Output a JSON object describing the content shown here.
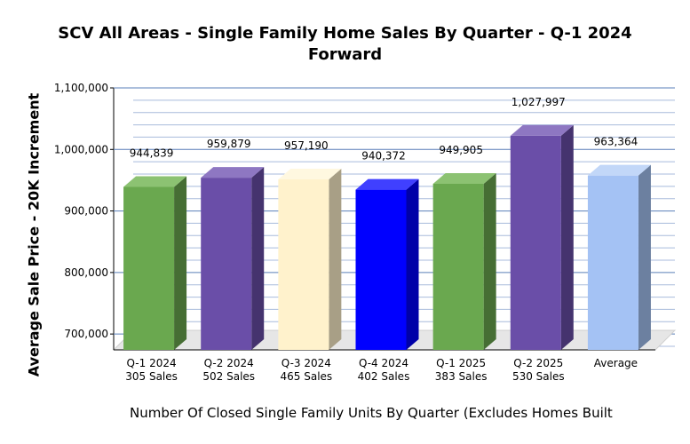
{
  "chart_data": {
    "type": "bar",
    "title": "SCV All Areas - Single Family Home Sales By Quarter - Q-1 2024 Forward",
    "title_lines": [
      "SCV All Areas - Single Family Home Sales By Quarter - Q-1 2024",
      "Forward"
    ],
    "ylabel": "Average Sale Price - 20K Increment",
    "xlabel": "Number Of Closed Single Family Units By Quarter (Excludes Homes Built",
    "ylim": [
      680000,
      1100000
    ],
    "yticks": [
      700000,
      800000,
      900000,
      1000000,
      1100000
    ],
    "ytick_labels": [
      "700,000",
      "800,000",
      "900,000",
      "1,000,000",
      "1,100,000"
    ],
    "minor_step": 20000,
    "grid": true,
    "categories": [
      {
        "line1": "Q-1 2024",
        "line2": "305 Sales"
      },
      {
        "line1": "Q-2 2024",
        "line2": "502 Sales"
      },
      {
        "line1": "Q-3 2024",
        "line2": "465 Sales"
      },
      {
        "line1": "Q-4 2024",
        "line2": "402 Sales"
      },
      {
        "line1": "Q-1 2025",
        "line2": "383 Sales"
      },
      {
        "line1": "Q-2 2025",
        "line2": "530 Sales"
      },
      {
        "line1": "Average",
        "line2": ""
      }
    ],
    "values": [
      944839,
      959879,
      957190,
      940372,
      949905,
      1027997,
      963364
    ],
    "value_labels": [
      "944,839",
      "959,879",
      "957,190",
      "940,372",
      "949,905",
      "1,027,997",
      "963,364"
    ],
    "colors": [
      {
        "front": "#6aa84f",
        "top": "#8cc272",
        "side": "#466e34"
      },
      {
        "front": "#6a4ea8",
        "top": "#8e77c2",
        "side": "#45336e"
      },
      {
        "front": "#fff2cc",
        "top": "#fff8e0",
        "side": "#a89f86"
      },
      {
        "front": "#0000ff",
        "top": "#4040ff",
        "side": "#0000a8"
      },
      {
        "front": "#6aa84f",
        "top": "#8cc272",
        "side": "#466e34"
      },
      {
        "front": "#6a4ea8",
        "top": "#8e77c2",
        "side": "#45336e"
      },
      {
        "front": "#a4c2f4",
        "top": "#c2d7f8",
        "side": "#6c80a0"
      }
    ]
  }
}
